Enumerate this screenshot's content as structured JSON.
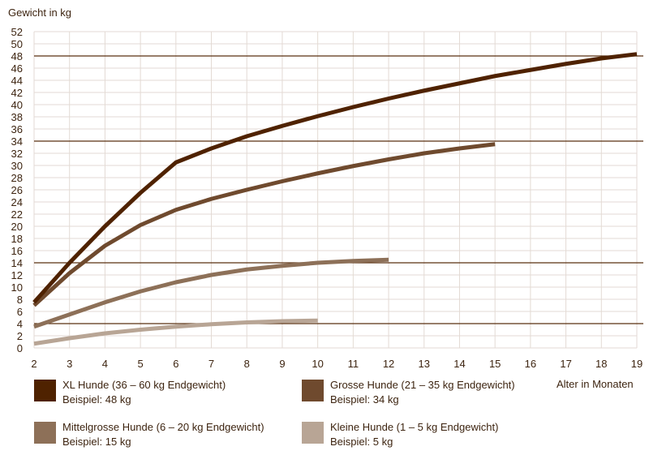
{
  "chart_data": {
    "type": "line",
    "ylabel": "Gewicht in kg",
    "xlabel": "Alter in Monaten",
    "xlim": [
      2,
      19
    ],
    "ylim": [
      0,
      52
    ],
    "xticks": [
      2,
      3,
      4,
      5,
      6,
      7,
      8,
      9,
      10,
      11,
      12,
      13,
      14,
      15,
      16,
      17,
      18,
      19
    ],
    "yticks": [
      0,
      2,
      4,
      6,
      8,
      10,
      12,
      14,
      16,
      18,
      20,
      22,
      24,
      26,
      28,
      30,
      32,
      34,
      36,
      38,
      40,
      42,
      44,
      46,
      48,
      50,
      52
    ],
    "grid": true,
    "reference_lines": [
      48,
      34,
      14,
      4
    ],
    "reference_color": "#5a3010",
    "legend_placement": "bottom",
    "series": [
      {
        "name": "XL Hunde (36 – 60 kg Endgewicht)",
        "example": "Beispiel: 48 kg",
        "color": "#4f2200",
        "x": [
          2,
          3,
          4,
          5,
          6,
          7,
          8,
          9,
          10,
          11,
          12,
          13,
          14,
          15,
          16,
          17,
          18,
          19
        ],
        "y": [
          7.5,
          14,
          20,
          25.5,
          30.5,
          32.8,
          34.8,
          36.5,
          38.1,
          39.6,
          41,
          42.3,
          43.5,
          44.7,
          45.7,
          46.7,
          47.6,
          48.3
        ]
      },
      {
        "name": "Grosse Hunde (21 – 35 kg Endgewicht)",
        "example": "Beispiel: 34 kg",
        "color": "#6f4a2e",
        "x": [
          2,
          3,
          4,
          5,
          6,
          7,
          8,
          9,
          10,
          11,
          12,
          13,
          14,
          15
        ],
        "y": [
          7,
          12.3,
          16.8,
          20.2,
          22.7,
          24.5,
          26,
          27.4,
          28.7,
          29.9,
          31,
          32,
          32.8,
          33.5
        ]
      },
      {
        "name": "Mittelgrosse Hunde (6 – 20 kg Endgewicht)",
        "example": "Beispiel: 15 kg",
        "color": "#8d7058",
        "x": [
          2,
          3,
          4,
          5,
          6,
          7,
          8,
          9,
          10,
          11,
          12
        ],
        "y": [
          3.5,
          5.5,
          7.5,
          9.3,
          10.8,
          12,
          12.9,
          13.5,
          14,
          14.3,
          14.5
        ]
      },
      {
        "name": "Kleine Hunde (1 – 5 kg Endgewicht)",
        "example": "Beispiel: 5 kg",
        "color": "#b8a595",
        "x": [
          2,
          3,
          4,
          5,
          6,
          7,
          8,
          9,
          10
        ],
        "y": [
          0.7,
          1.6,
          2.4,
          3.0,
          3.5,
          3.9,
          4.2,
          4.4,
          4.5
        ]
      }
    ]
  }
}
